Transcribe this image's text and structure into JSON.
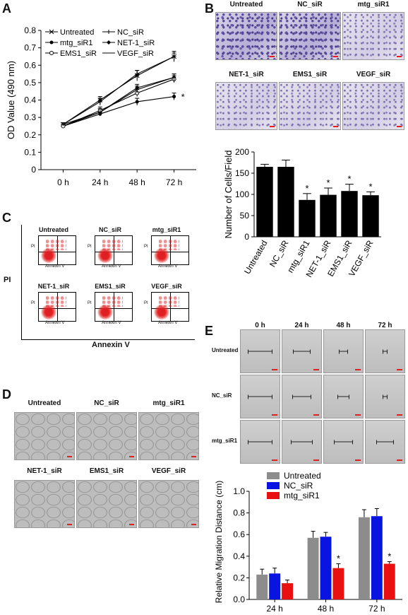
{
  "panels": {
    "A": {
      "letter": "A",
      "chart_data": {
        "type": "line",
        "categories": [
          "0 h",
          "24 h",
          "48 h",
          "72 h"
        ],
        "ylabel": "OD Value (490 nm)",
        "ylim": [
          0,
          0.8
        ],
        "yticks": [
          "0",
          "0.1",
          "0.2",
          "0.3",
          "0.4",
          "0.5",
          "0.6",
          "0.7",
          "0.8"
        ],
        "legend": [
          "Untreated",
          "NC_siR",
          "mtg_siR1",
          "NET-1_siR",
          "EMS1_siR",
          "VEGF_siR"
        ],
        "series": [
          {
            "name": "Untreated",
            "values": [
              0.26,
              0.4,
              0.54,
              0.65
            ],
            "err": [
              0.01,
              0.02,
              0.03,
              0.03
            ]
          },
          {
            "name": "NC_siR",
            "values": [
              0.26,
              0.39,
              0.55,
              0.65
            ],
            "err": [
              0.01,
              0.02,
              0.02,
              0.02
            ]
          },
          {
            "name": "mtg_siR1",
            "values": [
              0.25,
              0.32,
              0.39,
              0.42
            ],
            "err": [
              0.01,
              0.01,
              0.02,
              0.02
            ]
          },
          {
            "name": "NET-1_siR",
            "values": [
              0.25,
              0.33,
              0.47,
              0.53
            ],
            "err": [
              0.01,
              0.02,
              0.02,
              0.02
            ]
          },
          {
            "name": "EMS1_siR",
            "values": [
              0.25,
              0.34,
              0.44,
              0.52
            ],
            "err": [
              0.01,
              0.02,
              0.02,
              0.02
            ]
          },
          {
            "name": "VEGF_siR",
            "values": [
              0.26,
              0.33,
              0.46,
              0.53
            ],
            "err": [
              0.01,
              0.02,
              0.02,
              0.02
            ]
          }
        ],
        "star": "*"
      }
    },
    "B": {
      "letter": "B",
      "image_labels": [
        "Untreated",
        "NC_siR",
        "mtg_siR1",
        "NET-1_siR",
        "EMS1_siR",
        "VEGF_siR"
      ],
      "chart_data": {
        "type": "bar",
        "categories": [
          "Untreated",
          "NC_siR",
          "mtg_siR1",
          "NET-1_siR",
          "EMS1_siR",
          "VEGF_siR"
        ],
        "values": [
          165,
          165,
          87,
          99,
          108,
          98
        ],
        "err": [
          6,
          16,
          15,
          16,
          16,
          8
        ],
        "significant": [
          false,
          false,
          true,
          true,
          true,
          true
        ],
        "ylabel": "Number of Cells/Field",
        "ylim": [
          0,
          200
        ],
        "yticks": [
          "0",
          "50",
          "100",
          "150",
          "200"
        ],
        "star": "*"
      }
    },
    "C": {
      "letter": "C",
      "image_labels": [
        "Untreated",
        "NC_siR",
        "mtg_siR1",
        "NET-1_siR",
        "EMS1_siR",
        "VEGF_siR"
      ],
      "plot_xlabel": "Annexin V",
      "plot_ylabel": "PI",
      "mini_xlabel": "Annexin V",
      "mini_ylabel": "PI"
    },
    "D": {
      "letter": "D",
      "image_labels": [
        "Untreated",
        "NC_siR",
        "mtg_siR1",
        "NET-1_siR",
        "EMS1_siR",
        "VEGF_siR"
      ]
    },
    "E": {
      "letter": "E",
      "columns": [
        "0 h",
        "24 h",
        "48 h",
        "72 h"
      ],
      "rows": [
        "Untreated",
        "NC_siR",
        "mtg_siR1"
      ],
      "gaps": [
        [
          0.9,
          0.65,
          0.35,
          0.2
        ],
        [
          0.9,
          0.7,
          0.45,
          0.2
        ],
        [
          0.9,
          0.8,
          0.7,
          0.65
        ]
      ],
      "chart_data": {
        "type": "bar",
        "categories": [
          "24 h",
          "48 h",
          "72 h"
        ],
        "legend": [
          "Untreated",
          "NC_siR",
          "mtg_siR1"
        ],
        "series": [
          {
            "name": "Untreated",
            "color": "#8c8c8c",
            "values": [
              0.23,
              0.57,
              0.76
            ],
            "err": [
              0.05,
              0.06,
              0.07
            ]
          },
          {
            "name": "NC_siR",
            "color": "#0a14e0",
            "values": [
              0.24,
              0.58,
              0.77
            ],
            "err": [
              0.05,
              0.04,
              0.07
            ]
          },
          {
            "name": "mtg_siR1",
            "color": "#e81010",
            "values": [
              0.15,
              0.29,
              0.33
            ],
            "err": [
              0.03,
              0.04,
              0.02
            ]
          }
        ],
        "significant": [
          false,
          true,
          true
        ],
        "ylabel": "Relative Migration Distance (cm)",
        "ylim": [
          0,
          1.0
        ],
        "yticks": [
          "0.0",
          "0.2",
          "0.4",
          "0.6",
          "0.8",
          "1.0"
        ],
        "star": "*"
      }
    }
  }
}
